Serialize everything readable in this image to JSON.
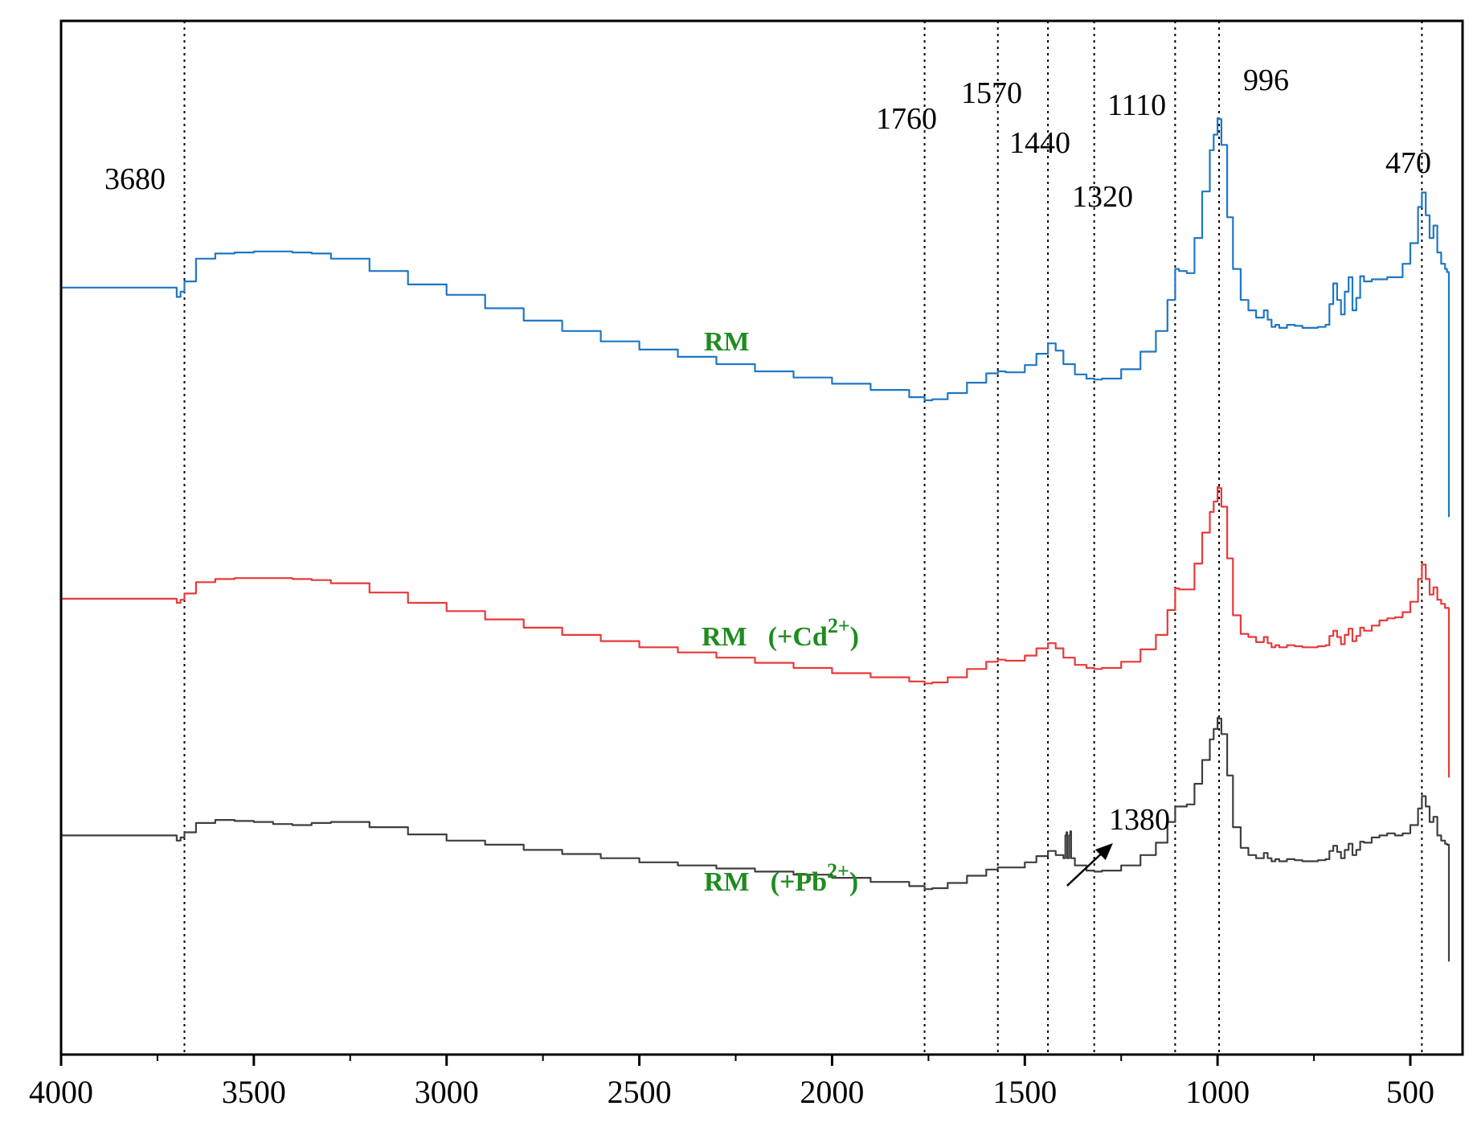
{
  "chart_data": {
    "type": "line",
    "title": "",
    "xlabel": "",
    "ylabel": "",
    "xlim": [
      4000,
      400
    ],
    "x_reversed": true,
    "y_axis_visible_ticks": false,
    "grid": false,
    "x_ticks": [
      4000,
      3500,
      3000,
      2500,
      2000,
      1500,
      1000,
      500
    ],
    "x_tick_labels": [
      "4000",
      "3500",
      "3000",
      "2500",
      "2000",
      "1500",
      "1000",
      "500"
    ],
    "reference_lines": [
      3680,
      1760,
      1570,
      1440,
      1320,
      1110,
      996,
      470
    ],
    "peak_labels": [
      {
        "text": "3680",
        "x": 3680
      },
      {
        "text": "1760",
        "x": 1760
      },
      {
        "text": "1570",
        "x": 1570
      },
      {
        "text": "1440",
        "x": 1440
      },
      {
        "text": "1320",
        "x": 1320
      },
      {
        "text": "1110",
        "x": 1110
      },
      {
        "text": "996",
        "x": 996
      },
      {
        "text": "470",
        "x": 470
      }
    ],
    "annotation": {
      "text": "1380",
      "x": 1380,
      "series": "RM (+Pb2+)"
    },
    "series": [
      {
        "name": "RM",
        "label_main": "RM",
        "label_ion": "",
        "label_sup": "",
        "color": "#1f77c4",
        "x": [
          4000,
          3700,
          3690,
          3680,
          3650,
          3600,
          3550,
          3500,
          3450,
          3400,
          3350,
          3300,
          3200,
          3100,
          3000,
          2900,
          2800,
          2700,
          2600,
          2500,
          2400,
          2300,
          2200,
          2100,
          2000,
          1900,
          1800,
          1760,
          1740,
          1700,
          1650,
          1600,
          1570,
          1550,
          1500,
          1470,
          1440,
          1420,
          1400,
          1370,
          1340,
          1320,
          1300,
          1250,
          1200,
          1160,
          1130,
          1110,
          1100,
          1080,
          1060,
          1040,
          1020,
          1010,
          1000,
          996,
          990,
          975,
          960,
          940,
          920,
          900,
          880,
          870,
          860,
          850,
          840,
          820,
          800,
          780,
          760,
          740,
          720,
          710,
          700,
          690,
          680,
          670,
          660,
          650,
          640,
          630,
          620,
          600,
          580,
          560,
          540,
          520,
          500,
          480,
          470,
          460,
          450,
          440,
          430,
          420,
          410,
          405,
          400
        ],
        "y": [
          0.742,
          0.733,
          0.738,
          0.748,
          0.77,
          0.775,
          0.776,
          0.777,
          0.777,
          0.776,
          0.775,
          0.77,
          0.758,
          0.745,
          0.735,
          0.722,
          0.71,
          0.7,
          0.69,
          0.682,
          0.675,
          0.668,
          0.661,
          0.655,
          0.649,
          0.643,
          0.636,
          0.633,
          0.634,
          0.64,
          0.65,
          0.659,
          0.661,
          0.66,
          0.667,
          0.678,
          0.688,
          0.681,
          0.668,
          0.658,
          0.654,
          0.653,
          0.654,
          0.663,
          0.68,
          0.7,
          0.73,
          0.76,
          0.758,
          0.756,
          0.79,
          0.835,
          0.875,
          0.89,
          0.906,
          0.905,
          0.88,
          0.81,
          0.76,
          0.73,
          0.72,
          0.713,
          0.72,
          0.711,
          0.704,
          0.706,
          0.703,
          0.706,
          0.705,
          0.703,
          0.703,
          0.704,
          0.706,
          0.726,
          0.746,
          0.73,
          0.716,
          0.738,
          0.752,
          0.72,
          0.732,
          0.753,
          0.748,
          0.75,
          0.75,
          0.752,
          0.752,
          0.765,
          0.785,
          0.82,
          0.834,
          0.812,
          0.79,
          0.802,
          0.776,
          0.765,
          0.76,
          0.757,
          0.52
        ]
      },
      {
        "name": "RM (+Cd2+)",
        "label_main": "RM",
        "label_ion": "(+Cd",
        "label_sup": "2+",
        "color": "#e8393a",
        "x": [
          4000,
          3700,
          3690,
          3680,
          3650,
          3600,
          3550,
          3500,
          3450,
          3400,
          3350,
          3300,
          3200,
          3100,
          3000,
          2900,
          2800,
          2700,
          2600,
          2500,
          2400,
          2300,
          2200,
          2100,
          2000,
          1900,
          1800,
          1760,
          1740,
          1700,
          1650,
          1600,
          1570,
          1550,
          1500,
          1470,
          1440,
          1420,
          1400,
          1370,
          1340,
          1320,
          1300,
          1250,
          1200,
          1160,
          1130,
          1110,
          1100,
          1080,
          1060,
          1040,
          1020,
          1010,
          1000,
          996,
          990,
          975,
          960,
          940,
          920,
          900,
          880,
          870,
          860,
          850,
          840,
          820,
          800,
          780,
          760,
          740,
          720,
          710,
          700,
          690,
          680,
          670,
          660,
          650,
          640,
          630,
          620,
          600,
          580,
          560,
          540,
          520,
          500,
          480,
          470,
          460,
          450,
          440,
          430,
          420,
          410,
          405,
          400
        ],
        "y": [
          0.441,
          0.437,
          0.44,
          0.446,
          0.457,
          0.46,
          0.461,
          0.461,
          0.461,
          0.46,
          0.459,
          0.456,
          0.447,
          0.437,
          0.429,
          0.421,
          0.413,
          0.406,
          0.4,
          0.394,
          0.389,
          0.384,
          0.379,
          0.374,
          0.369,
          0.365,
          0.361,
          0.359,
          0.36,
          0.365,
          0.373,
          0.38,
          0.382,
          0.381,
          0.386,
          0.393,
          0.398,
          0.393,
          0.384,
          0.377,
          0.374,
          0.373,
          0.374,
          0.38,
          0.392,
          0.406,
          0.43,
          0.451,
          0.45,
          0.45,
          0.475,
          0.505,
          0.525,
          0.535,
          0.549,
          0.548,
          0.53,
          0.48,
          0.425,
          0.407,
          0.404,
          0.399,
          0.404,
          0.398,
          0.394,
          0.396,
          0.394,
          0.396,
          0.395,
          0.394,
          0.394,
          0.395,
          0.396,
          0.405,
          0.41,
          0.404,
          0.397,
          0.406,
          0.412,
          0.4,
          0.405,
          0.413,
          0.41,
          0.415,
          0.42,
          0.422,
          0.423,
          0.428,
          0.438,
          0.46,
          0.474,
          0.46,
          0.445,
          0.452,
          0.44,
          0.436,
          0.432,
          0.432,
          0.268
        ]
      },
      {
        "name": "RM (+Pb2+)",
        "label_main": "RM",
        "label_ion": "(+Pb",
        "label_sup": "2+",
        "color": "#3f3f3f",
        "x": [
          4000,
          3700,
          3690,
          3680,
          3650,
          3600,
          3550,
          3500,
          3450,
          3400,
          3350,
          3300,
          3200,
          3100,
          3000,
          2900,
          2800,
          2700,
          2600,
          2500,
          2400,
          2300,
          2200,
          2100,
          2000,
          1900,
          1800,
          1760,
          1740,
          1700,
          1650,
          1600,
          1570,
          1550,
          1500,
          1470,
          1440,
          1420,
          1400,
          1395,
          1392,
          1390,
          1385,
          1382,
          1380,
          1370,
          1340,
          1320,
          1300,
          1250,
          1200,
          1160,
          1130,
          1110,
          1100,
          1080,
          1060,
          1040,
          1020,
          1010,
          1000,
          996,
          990,
          975,
          960,
          940,
          920,
          900,
          880,
          870,
          860,
          850,
          840,
          820,
          800,
          780,
          760,
          740,
          720,
          710,
          700,
          690,
          680,
          670,
          660,
          650,
          640,
          630,
          620,
          600,
          580,
          560,
          540,
          520,
          500,
          480,
          470,
          460,
          450,
          440,
          430,
          420,
          410,
          405,
          400
        ],
        "y": [
          0.212,
          0.207,
          0.21,
          0.215,
          0.224,
          0.227,
          0.226,
          0.225,
          0.223,
          0.222,
          0.224,
          0.225,
          0.22,
          0.213,
          0.207,
          0.203,
          0.198,
          0.194,
          0.19,
          0.186,
          0.183,
          0.18,
          0.177,
          0.174,
          0.171,
          0.167,
          0.163,
          0.16,
          0.161,
          0.166,
          0.173,
          0.179,
          0.181,
          0.181,
          0.186,
          0.192,
          0.197,
          0.193,
          0.19,
          0.212,
          0.215,
          0.19,
          0.212,
          0.216,
          0.19,
          0.183,
          0.178,
          0.177,
          0.178,
          0.183,
          0.193,
          0.205,
          0.225,
          0.24,
          0.24,
          0.242,
          0.262,
          0.285,
          0.305,
          0.315,
          0.326,
          0.325,
          0.31,
          0.27,
          0.22,
          0.2,
          0.193,
          0.19,
          0.195,
          0.19,
          0.187,
          0.189,
          0.187,
          0.189,
          0.188,
          0.187,
          0.187,
          0.188,
          0.189,
          0.197,
          0.202,
          0.196,
          0.19,
          0.198,
          0.204,
          0.193,
          0.198,
          0.206,
          0.205,
          0.21,
          0.212,
          0.214,
          0.212,
          0.214,
          0.222,
          0.238,
          0.25,
          0.24,
          0.225,
          0.23,
          0.212,
          0.207,
          0.204,
          0.203,
          0.09
        ]
      }
    ]
  }
}
